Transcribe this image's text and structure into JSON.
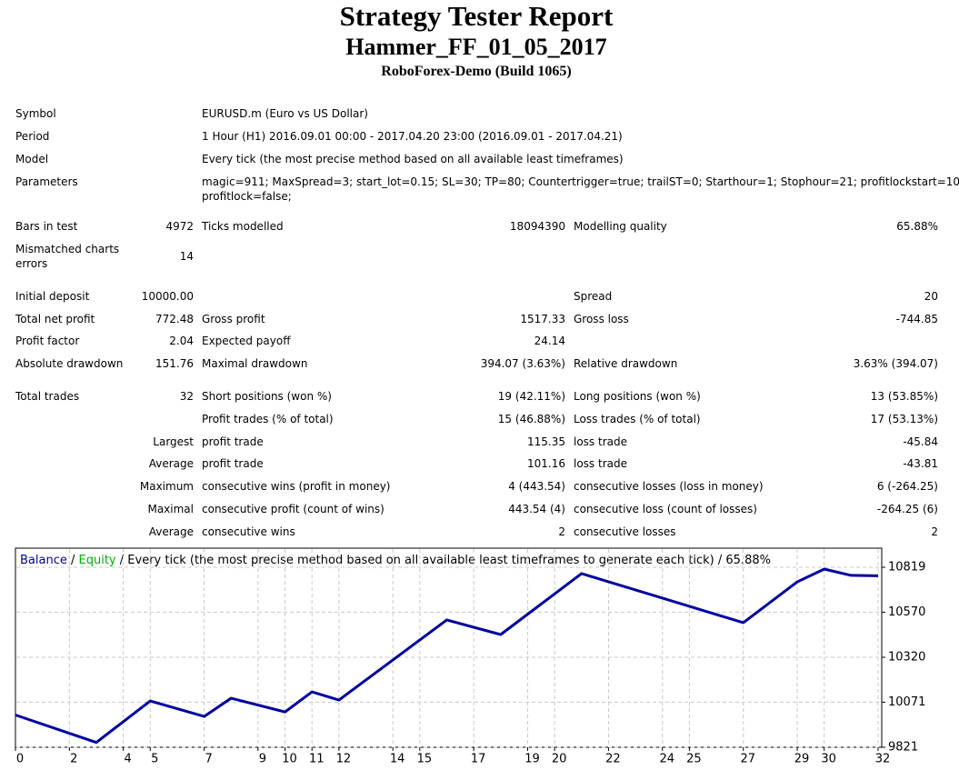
{
  "header": {
    "title": "Strategy Tester Report",
    "subtitle": "Hammer_FF_01_05_2017",
    "server": "RoboForex-Demo (Build 1065)"
  },
  "table": {
    "rows": [
      {
        "l1": "Symbol",
        "l2": "EURUSD.m (Euro vs US Dollar)"
      },
      {
        "l1": "Period",
        "l2": "1 Hour (H1) 2016.09.01 00:00 - 2017.04.20 23:00 (2016.09.01 - 2017.04.21)"
      },
      {
        "l1": "Model",
        "l2": "Every tick (the most precise method based on all available least timeframes)"
      },
      {
        "l1": "Parameters",
        "l2": [
          "magic=911; MaxSpread=3; start_lot=0.15; SL=30; TP=80; Countertrigger=true; trailST=0; Starthour=1; Stophour=21; profitlockstart=10;",
          "profitlock=false;"
        ]
      },
      {
        "l1": "Bars in test",
        "v1": "4972",
        "l2": "Ticks modelled",
        "v2": "18094390",
        "l3": "Modelling quality",
        "v3": "65.88%"
      },
      {
        "l1": [
          "Mismatched charts",
          "errors"
        ],
        "v1": "14"
      },
      {
        "l1": "Initial deposit",
        "v1": "10000.00",
        "l3": "Spread",
        "v3": "20"
      },
      {
        "l1": "Total net profit",
        "v1": "772.48",
        "l2": "Gross profit",
        "v2": "1517.33",
        "l3": "Gross loss",
        "v3": "-744.85"
      },
      {
        "l1": "Profit factor",
        "v1": "2.04",
        "l2": "Expected payoff",
        "v2": "24.14"
      },
      {
        "l1": "Absolute drawdown",
        "v1": "151.76",
        "l2": "Maximal drawdown",
        "v2": "394.07 (3.63%)",
        "l3": "Relative drawdown",
        "v3": "3.63% (394.07)"
      },
      {
        "l1": "Total trades",
        "v1": "32",
        "l2": "Short positions (won %)",
        "v2": "19 (42.11%)",
        "l3": "Long positions (won %)",
        "v3": "13 (53.85%)"
      },
      {
        "l2": "Profit trades (% of total)",
        "v2": "15 (46.88%)",
        "l3": "Loss trades (% of total)",
        "v3": "17 (53.13%)"
      },
      {
        "v1": "Largest",
        "l2": "profit trade",
        "v2": "115.35",
        "l3": "loss trade",
        "v3": "-45.84"
      },
      {
        "v1": "Average",
        "l2": "profit trade",
        "v2": "101.16",
        "l3": "loss trade",
        "v3": "-43.81"
      },
      {
        "v1": "Maximum",
        "l2": "consecutive wins (profit in money)",
        "v2": "4 (443.54)",
        "l3": "consecutive losses (loss in money)",
        "v3": "6 (-264.25)"
      },
      {
        "v1": "Maximal",
        "l2": "consecutive profit (count of wins)",
        "v2": "443.54 (4)",
        "l3": "consecutive loss (count of losses)",
        "v3": "-264.25 (6)"
      },
      {
        "v1": "Average",
        "l2": "consecutive wins",
        "v2": "2",
        "l3": "consecutive losses",
        "v3": "2"
      }
    ]
  },
  "chart_data": {
    "type": "line",
    "subtitle": "Every tick (the most precise method based on all available least timeframes to generate each tick)",
    "quality": "65.88%",
    "x": [
      0,
      3,
      5,
      7,
      8,
      10,
      11,
      12,
      16,
      18,
      21,
      27,
      29,
      30,
      31,
      32
    ],
    "series": [
      {
        "name": "Balance",
        "color": "#0000a0",
        "values": [
          10000,
          9848,
          10078,
          9992,
          10093,
          10017,
          10128,
          10083,
          10527,
          10446,
          10784,
          10512,
          10738,
          10809,
          10774,
          10772
        ]
      },
      {
        "name": "Equity",
        "color": "#00b000"
      }
    ],
    "xlim": [
      0,
      32
    ],
    "xticks": [
      0,
      2,
      4,
      5,
      7,
      9,
      10,
      11,
      12,
      14,
      15,
      17,
      19,
      20,
      22,
      24,
      25,
      27,
      29,
      30,
      32
    ],
    "ylim": [
      9821,
      10819
    ],
    "yticks": [
      9821,
      10071,
      10320,
      10570,
      10819
    ],
    "grid": true
  }
}
